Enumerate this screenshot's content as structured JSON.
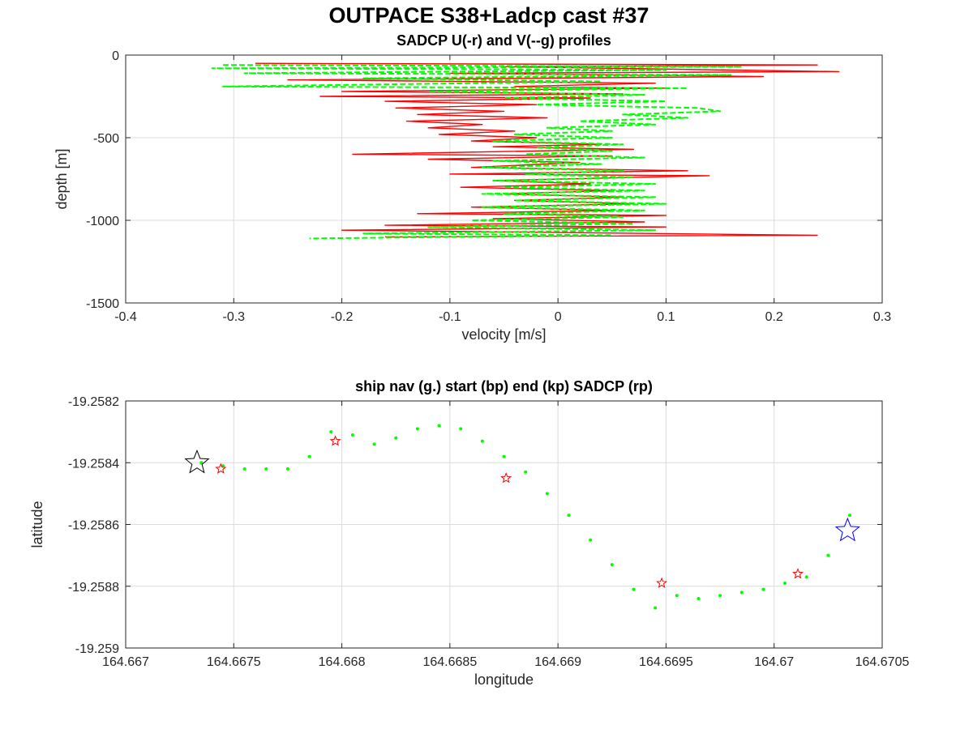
{
  "figure": {
    "title": "OUTPACE S38+Ladcp cast #37"
  },
  "chart_data": [
    {
      "type": "line",
      "title": "SADCP U(-r) and V(--g) profiles",
      "xlabel": "velocity [m/s]",
      "ylabel": "depth [m]",
      "xlim": [
        -0.4,
        0.3
      ],
      "ylim": [
        -1500,
        0
      ],
      "xticks": [
        -0.4,
        -0.3,
        -0.2,
        -0.1,
        0,
        0.1,
        0.2,
        0.3
      ],
      "yticks": [
        0,
        -500,
        -1000,
        -1500
      ],
      "xtick_labels": [
        "-0.4",
        "-0.3",
        "-0.2",
        "-0.1",
        "0",
        "0.1",
        "0.2",
        "0.3"
      ],
      "ytick_labels": [
        "0",
        "-500",
        "-1000",
        "-1500"
      ],
      "grid": true,
      "series": [
        {
          "key": "U",
          "color": "#ff0000",
          "style": "solid",
          "points": [
            [
              -0.28,
              -50
            ],
            [
              0.24,
              -60
            ],
            [
              -0.05,
              -70
            ],
            [
              0.26,
              -100
            ],
            [
              -0.1,
              -110
            ],
            [
              0.19,
              -130
            ],
            [
              -0.25,
              -150
            ],
            [
              0.09,
              -170
            ],
            [
              -0.04,
              -190
            ],
            [
              0.1,
              -200
            ],
            [
              -0.2,
              -220
            ],
            [
              0.06,
              -235
            ],
            [
              -0.22,
              -250
            ],
            [
              0.03,
              -260
            ],
            [
              -0.16,
              -280
            ],
            [
              -0.02,
              -300
            ],
            [
              -0.15,
              -320
            ],
            [
              -0.05,
              -340
            ],
            [
              -0.13,
              -360
            ],
            [
              -0.01,
              -380
            ],
            [
              -0.14,
              -400
            ],
            [
              -0.07,
              -420
            ],
            [
              -0.12,
              -440
            ],
            [
              -0.04,
              -460
            ],
            [
              -0.11,
              -480
            ],
            [
              -0.02,
              -500
            ],
            [
              -0.08,
              -520
            ],
            [
              0.04,
              -540
            ],
            [
              -0.06,
              -555
            ],
            [
              0.07,
              -570
            ],
            [
              -0.19,
              -600
            ],
            [
              0.05,
              -610
            ],
            [
              -0.12,
              -630
            ],
            [
              0.02,
              -650
            ],
            [
              -0.08,
              -680
            ],
            [
              0.12,
              -700
            ],
            [
              -0.1,
              -720
            ],
            [
              0.14,
              -730
            ],
            [
              -0.06,
              -760
            ],
            [
              0.03,
              -780
            ],
            [
              -0.09,
              -800
            ],
            [
              0.05,
              -820
            ],
            [
              -0.05,
              -840
            ],
            [
              0.06,
              -860
            ],
            [
              -0.04,
              -880
            ],
            [
              0.07,
              -900
            ],
            [
              -0.08,
              -920
            ],
            [
              0.05,
              -940
            ],
            [
              -0.13,
              -960
            ],
            [
              0.1,
              -970
            ],
            [
              -0.06,
              -990
            ],
            [
              0.08,
              -1010
            ],
            [
              -0.16,
              -1030
            ],
            [
              0.1,
              -1040
            ],
            [
              -0.2,
              -1060
            ],
            [
              0.24,
              -1090
            ],
            [
              -0.16,
              -1100
            ]
          ]
        },
        {
          "key": "V",
          "color": "#00ff00",
          "style": "dashed",
          "points": [
            [
              -0.31,
              -60
            ],
            [
              0.17,
              -70
            ],
            [
              -0.32,
              -80
            ],
            [
              0.1,
              -90
            ],
            [
              -0.29,
              -110
            ],
            [
              0.16,
              -120
            ],
            [
              -0.18,
              -140
            ],
            [
              0.04,
              -160
            ],
            [
              -0.31,
              -190
            ],
            [
              0.12,
              -200
            ],
            [
              -0.12,
              -220
            ],
            [
              0.08,
              -240
            ],
            [
              -0.05,
              -260
            ],
            [
              0.1,
              -280
            ],
            [
              -0.02,
              -300
            ],
            [
              0.13,
              -320
            ],
            [
              0.15,
              -340
            ],
            [
              0.06,
              -360
            ],
            [
              0.12,
              -380
            ],
            [
              0.02,
              -400
            ],
            [
              0.09,
              -420
            ],
            [
              -0.01,
              -440
            ],
            [
              0.05,
              -460
            ],
            [
              -0.04,
              -480
            ],
            [
              0.05,
              -500
            ],
            [
              -0.06,
              -520
            ],
            [
              0.06,
              -540
            ],
            [
              -0.02,
              -560
            ],
            [
              0.05,
              -580
            ],
            [
              -0.03,
              -600
            ],
            [
              0.08,
              -620
            ],
            [
              -0.06,
              -640
            ],
            [
              0.04,
              -660
            ],
            [
              -0.07,
              -680
            ],
            [
              0.06,
              -700
            ],
            [
              -0.03,
              -720
            ],
            [
              0.07,
              -740
            ],
            [
              -0.06,
              -760
            ],
            [
              0.09,
              -780
            ],
            [
              -0.05,
              -800
            ],
            [
              0.08,
              -820
            ],
            [
              -0.07,
              -840
            ],
            [
              0.09,
              -860
            ],
            [
              -0.04,
              -880
            ],
            [
              0.1,
              -900
            ],
            [
              -0.07,
              -920
            ],
            [
              0.08,
              -940
            ],
            [
              -0.05,
              -960
            ],
            [
              0.06,
              -980
            ],
            [
              -0.08,
              -1000
            ],
            [
              0.07,
              -1020
            ],
            [
              -0.12,
              -1040
            ],
            [
              0.09,
              -1060
            ],
            [
              -0.18,
              -1080
            ],
            [
              0.05,
              -1090
            ],
            [
              -0.23,
              -1110
            ]
          ]
        }
      ]
    },
    {
      "type": "scatter",
      "title": "ship nav (g.) start (bp) end (kp) SADCP (rp)",
      "xlabel": "longitude",
      "ylabel": "latitude",
      "xlim": [
        164.667,
        164.6705
      ],
      "ylim": [
        -19.259,
        -19.2582
      ],
      "xticks": [
        164.667,
        164.6675,
        164.668,
        164.6685,
        164.669,
        164.6695,
        164.67,
        164.6705
      ],
      "yticks": [
        -19.2582,
        -19.2584,
        -19.2586,
        -19.2588,
        -19.259
      ],
      "xtick_labels": [
        "164.667",
        "164.6675",
        "164.668",
        "164.6685",
        "164.669",
        "164.6695",
        "164.67",
        "164.6705"
      ],
      "ytick_labels": [
        "-19.2582",
        "-19.2584",
        "-19.2586",
        "-19.2588",
        "-19.259"
      ],
      "grid": true,
      "ship_nav": {
        "color": "#00ff00",
        "points": [
          [
            164.66735,
            -19.2584
          ],
          [
            164.66745,
            -19.25841
          ],
          [
            164.66755,
            -19.25842
          ],
          [
            164.66765,
            -19.25842
          ],
          [
            164.66775,
            -19.25842
          ],
          [
            164.66785,
            -19.25838
          ],
          [
            164.66795,
            -19.2583
          ],
          [
            164.66805,
            -19.25831
          ],
          [
            164.66815,
            -19.25834
          ],
          [
            164.66825,
            -19.25832
          ],
          [
            164.66835,
            -19.25829
          ],
          [
            164.66845,
            -19.25828
          ],
          [
            164.66855,
            -19.25829
          ],
          [
            164.66865,
            -19.25833
          ],
          [
            164.66875,
            -19.25838
          ],
          [
            164.66885,
            -19.25843
          ],
          [
            164.66895,
            -19.2585
          ],
          [
            164.66905,
            -19.25857
          ],
          [
            164.66915,
            -19.25865
          ],
          [
            164.66925,
            -19.25873
          ],
          [
            164.66935,
            -19.25881
          ],
          [
            164.66945,
            -19.25887
          ],
          [
            164.66955,
            -19.25883
          ],
          [
            164.66965,
            -19.25884
          ],
          [
            164.66975,
            -19.25883
          ],
          [
            164.66985,
            -19.25882
          ],
          [
            164.66995,
            -19.25881
          ],
          [
            164.67005,
            -19.25879
          ],
          [
            164.67015,
            -19.25877
          ],
          [
            164.67025,
            -19.2587
          ],
          [
            164.67035,
            -19.25857
          ]
        ]
      },
      "start": {
        "color": "#0000ff",
        "point": [
          164.67034,
          -19.25862
        ]
      },
      "end": {
        "color": "#000000",
        "point": [
          164.66733,
          -19.2584
        ]
      },
      "sadcp": {
        "color": "#ff0000",
        "points": [
          [
            164.66744,
            -19.25842
          ],
          [
            164.66797,
            -19.25833
          ],
          [
            164.66876,
            -19.25845
          ],
          [
            164.66948,
            -19.25879
          ],
          [
            164.67011,
            -19.25876
          ]
        ]
      }
    }
  ]
}
